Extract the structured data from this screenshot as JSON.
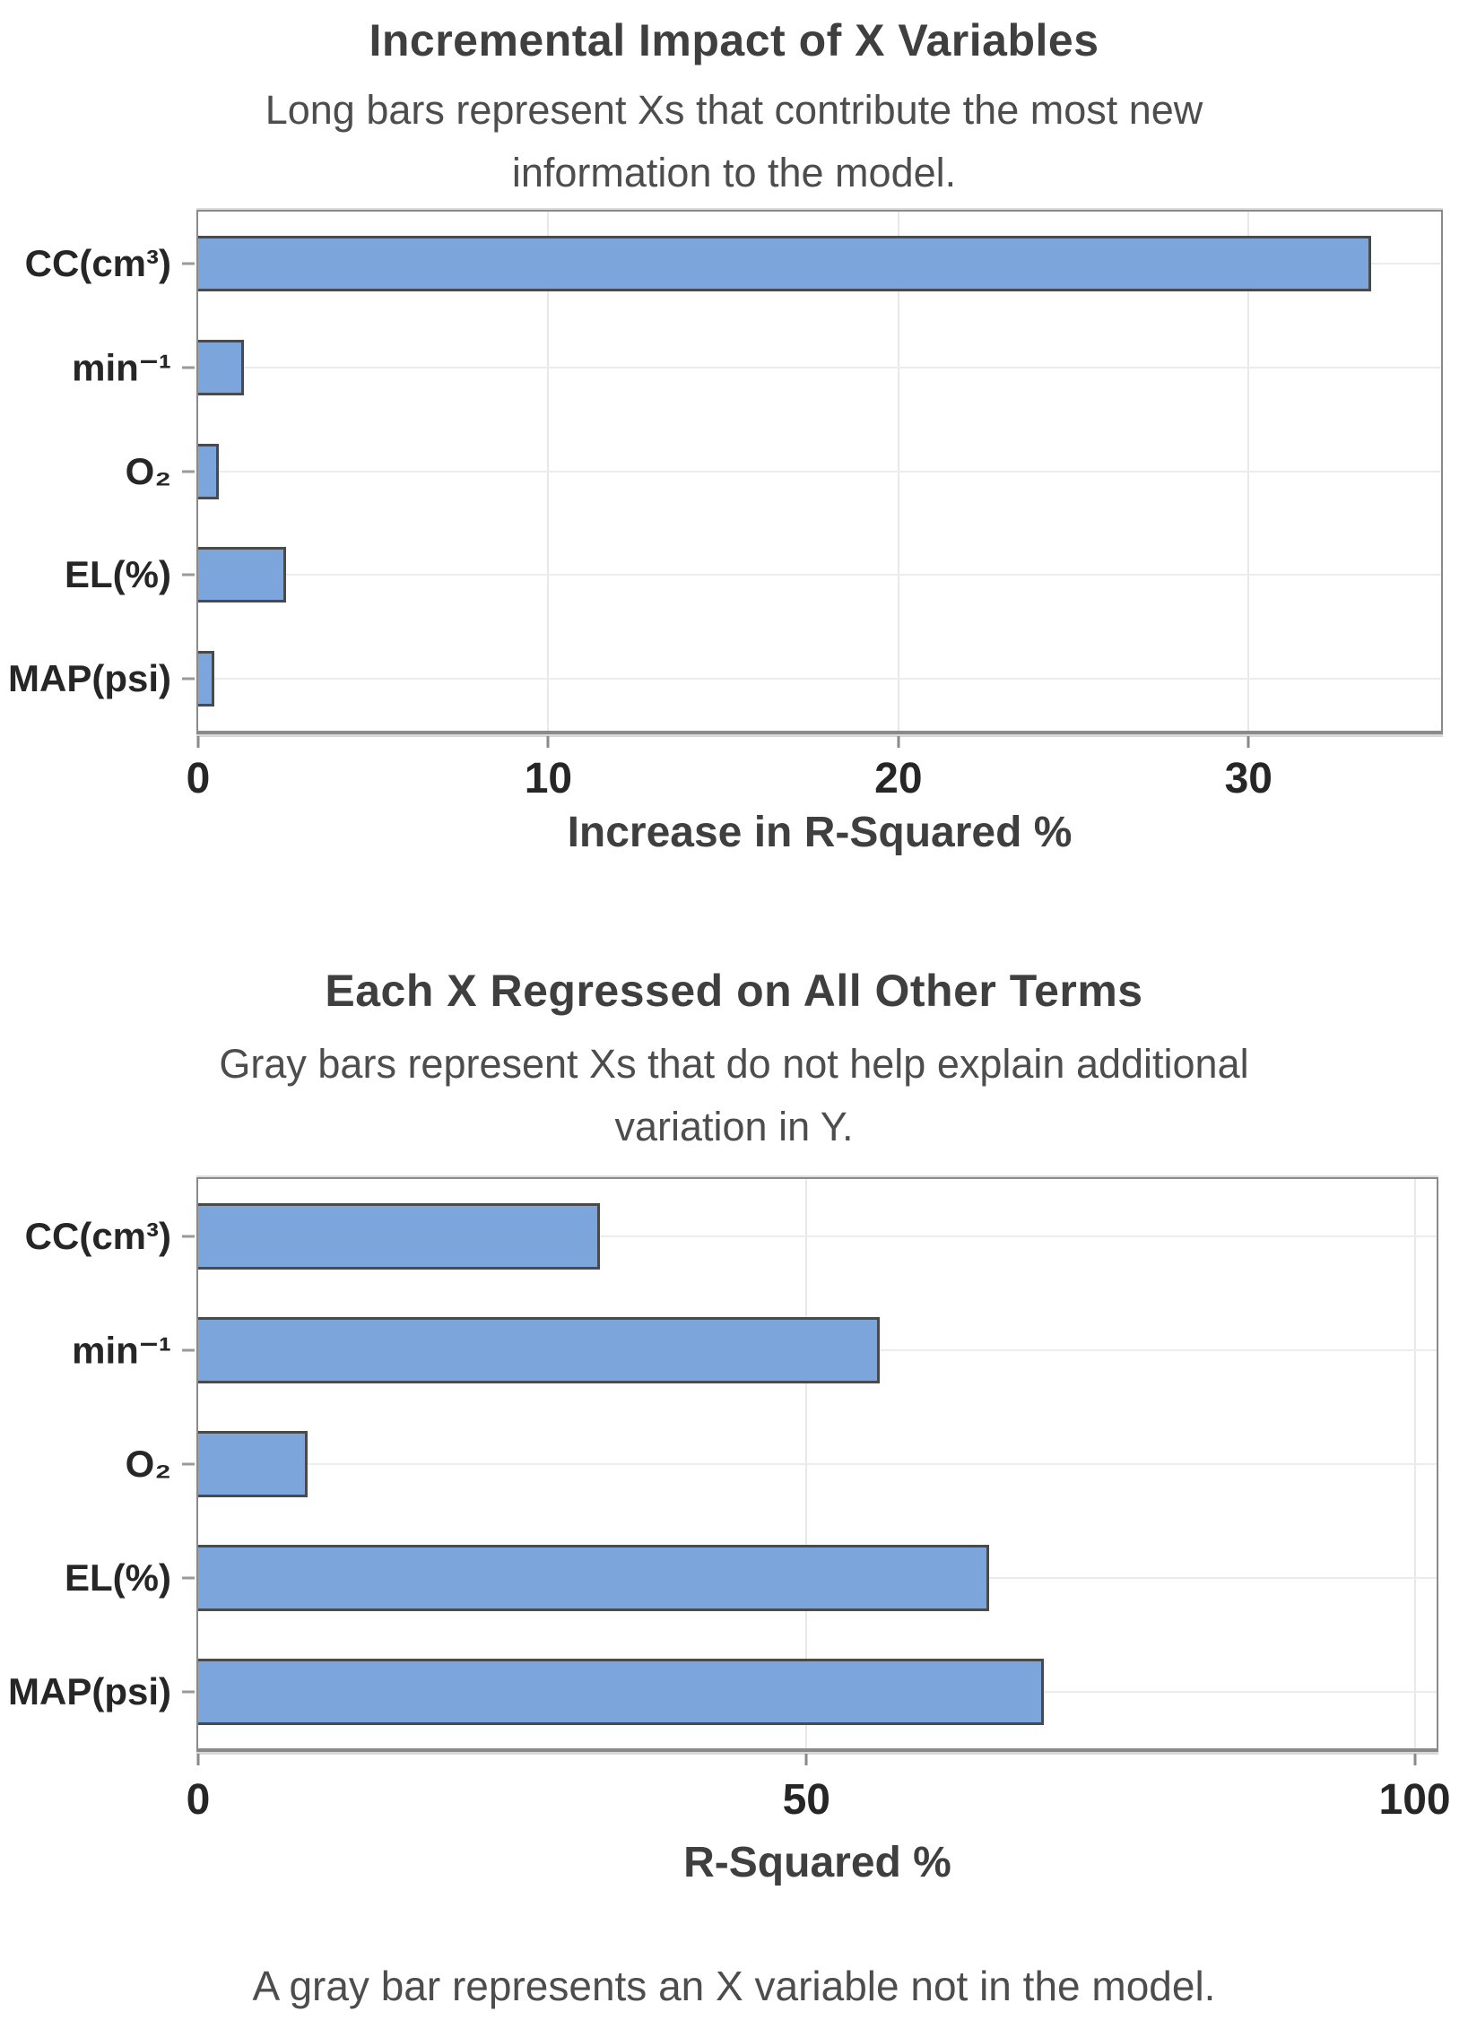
{
  "footer": {
    "note": "A gray bar represents an X variable not in the model."
  },
  "colors": {
    "bar_fill": "#7CA6DB",
    "bar_border": "#4A4A4A",
    "plot_border": "#8A8A8A",
    "gridline": "#E8E8E8",
    "title_text": "#3F3F3F",
    "subtitle_text": "#4D4D4D",
    "tick_text": "#262626",
    "background": "#FFFFFF"
  },
  "chart_data": [
    {
      "type": "bar",
      "orientation": "horizontal",
      "title": "Incremental Impact of X Variables",
      "subtitle": "Long bars represent Xs that contribute the most new information to the model.",
      "categories": [
        "CC(cm³)",
        "min⁻¹",
        "O₂",
        "EL(%)",
        "MAP(psi)"
      ],
      "values": [
        33.5,
        1.3,
        0.6,
        2.5,
        0.45
      ],
      "xlabel": "Increase in R-Squared %",
      "ylabel": "",
      "xticks": [
        0,
        10,
        20,
        30
      ],
      "xlim": [
        0,
        35.5
      ],
      "grid": "on",
      "legend": "none"
    },
    {
      "type": "bar",
      "orientation": "horizontal",
      "title": "Each X Regressed on All Other Terms",
      "subtitle": "Gray bars represent Xs that do not help explain additional variation in Y.",
      "categories": [
        "CC(cm³)",
        "min⁻¹",
        "O₂",
        "EL(%)",
        "MAP(psi)"
      ],
      "values": [
        33,
        56,
        9,
        65,
        69.5
      ],
      "xlabel": "R-Squared %",
      "ylabel": "",
      "xticks": [
        0,
        50,
        100
      ],
      "xlim": [
        0,
        101.8
      ],
      "grid": "on",
      "legend": "none"
    }
  ]
}
